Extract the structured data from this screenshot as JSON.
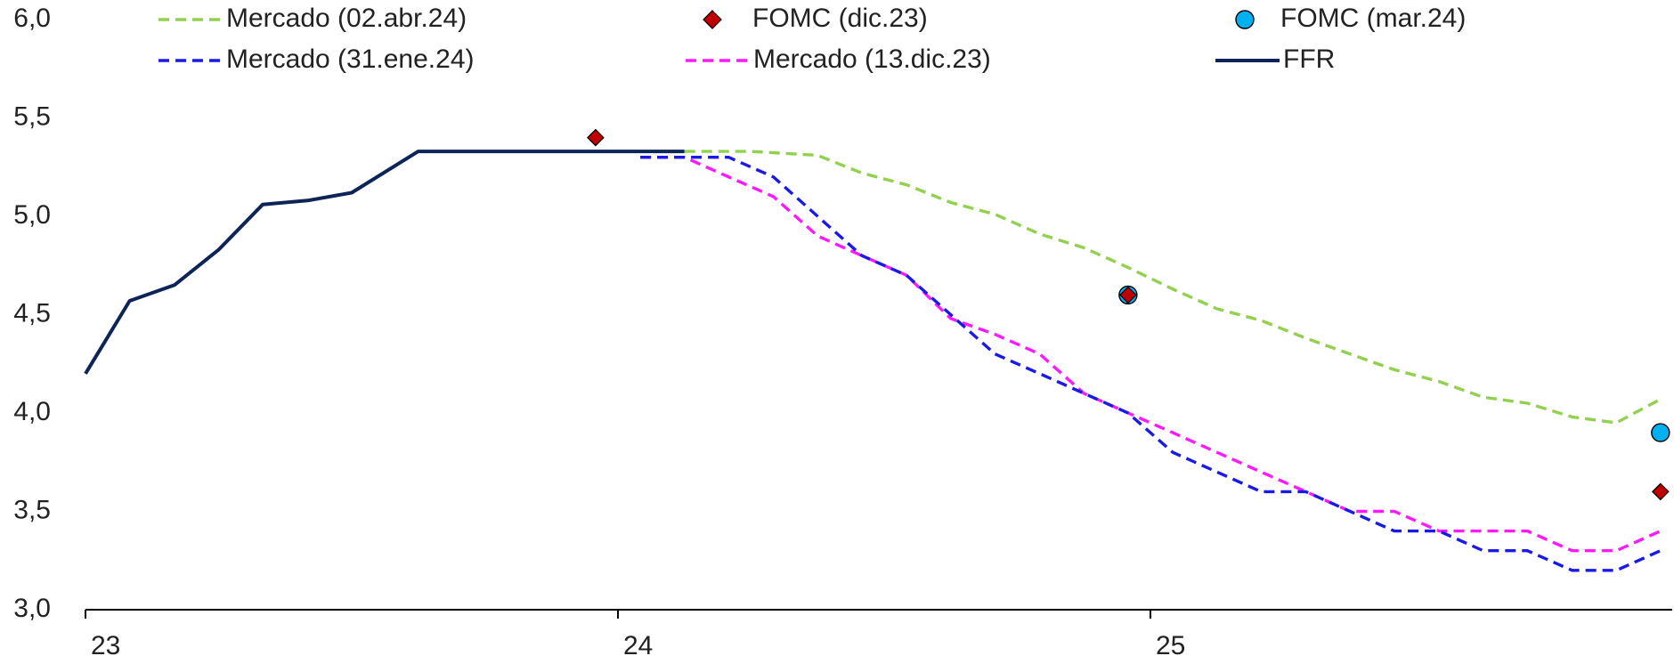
{
  "chart_data": {
    "type": "line",
    "title": "",
    "xlabel": "",
    "ylabel": "",
    "ylim": [
      3.0,
      6.0
    ],
    "xlim": [
      2023.0,
      2025.98
    ],
    "y_ticks": [
      "6,0",
      "5,5",
      "5,0",
      "4,5",
      "4,0",
      "3,5",
      "3,0"
    ],
    "y_tick_values": [
      6.0,
      5.5,
      5.0,
      4.5,
      4.0,
      3.5,
      3.0
    ],
    "x_ticks": [
      "23",
      "24",
      "25"
    ],
    "x_tick_values": [
      2023.0,
      2024.0,
      2025.0
    ],
    "grid": false,
    "legend_position": "top",
    "legend": [
      {
        "label": "Mercado (02.abr.24)",
        "series": "mercado_abr"
      },
      {
        "label": "FOMC (dic.23)",
        "series": "fomc_dic"
      },
      {
        "label": "FOMC (mar.24)",
        "series": "fomc_mar"
      },
      {
        "label": "Mercado (31.ene.24)",
        "series": "mercado_ene"
      },
      {
        "label": "Mercado (13.dic.23)",
        "series": "mercado_dic"
      },
      {
        "label": "FFR",
        "series": "ffr"
      }
    ],
    "series": [
      {
        "id": "ffr",
        "name": "FFR",
        "kind": "line",
        "color": "#0d2456",
        "dash": "solid",
        "x": [
          2023.0,
          2023.083,
          2023.167,
          2023.25,
          2023.333,
          2023.417,
          2023.5,
          2023.625,
          2023.75,
          2023.875,
          2024.0,
          2024.125
        ],
        "y": [
          4.2,
          4.57,
          4.65,
          4.83,
          5.06,
          5.08,
          5.12,
          5.33,
          5.33,
          5.33,
          5.33,
          5.33
        ]
      },
      {
        "id": "mercado_abr",
        "name": "Mercado (02.abr.24)",
        "kind": "line",
        "color": "#92d050",
        "dash": "dashed",
        "x": [
          2024.125,
          2024.25,
          2024.375,
          2024.458,
          2024.542,
          2024.625,
          2024.708,
          2024.792,
          2024.875,
          2024.958,
          2025.042,
          2025.125,
          2025.208,
          2025.292,
          2025.375,
          2025.458,
          2025.542,
          2025.625,
          2025.708,
          2025.792,
          2025.875,
          2025.958
        ],
        "y": [
          5.33,
          5.33,
          5.31,
          5.22,
          5.16,
          5.07,
          5.01,
          4.91,
          4.84,
          4.74,
          4.63,
          4.53,
          4.47,
          4.38,
          4.3,
          4.22,
          4.16,
          4.08,
          4.05,
          3.98,
          3.95,
          4.07
        ]
      },
      {
        "id": "mercado_ene",
        "name": "Mercado (31.ene.24)",
        "kind": "line",
        "color": "#1a1ae6",
        "dash": "dashed",
        "x": [
          2024.042,
          2024.125,
          2024.208,
          2024.292,
          2024.375,
          2024.458,
          2024.542,
          2024.625,
          2024.708,
          2024.792,
          2024.875,
          2024.958,
          2025.042,
          2025.125,
          2025.208,
          2025.292,
          2025.375,
          2025.458,
          2025.542,
          2025.625,
          2025.708,
          2025.792,
          2025.875,
          2025.958
        ],
        "y": [
          5.3,
          5.3,
          5.3,
          5.2,
          5.0,
          4.8,
          4.7,
          4.5,
          4.3,
          4.2,
          4.1,
          4.0,
          3.8,
          3.7,
          3.6,
          3.6,
          3.5,
          3.4,
          3.4,
          3.3,
          3.3,
          3.2,
          3.2,
          3.3
        ]
      },
      {
        "id": "mercado_dic",
        "name": "Mercado (13.dic.23)",
        "kind": "line",
        "color": "#ff19ff",
        "dash": "dashed",
        "x": [
          2024.042,
          2024.125,
          2024.208,
          2024.292,
          2024.375,
          2024.458,
          2024.542,
          2024.625,
          2024.708,
          2024.792,
          2024.875,
          2024.958,
          2025.042,
          2025.125,
          2025.208,
          2025.292,
          2025.375,
          2025.458,
          2025.542,
          2025.625,
          2025.708,
          2025.792,
          2025.875,
          2025.958
        ],
        "y": [
          5.3,
          5.3,
          5.2,
          5.1,
          4.9,
          4.8,
          4.7,
          4.48,
          4.4,
          4.3,
          4.1,
          4.0,
          3.9,
          3.8,
          3.7,
          3.6,
          3.5,
          3.5,
          3.4,
          3.4,
          3.4,
          3.3,
          3.3,
          3.4
        ]
      },
      {
        "id": "fomc_dic",
        "name": "FOMC (dic.23)",
        "kind": "marker",
        "marker": "diamond",
        "color": "#c00000",
        "x": [
          2023.958,
          2024.958,
          2025.958
        ],
        "y": [
          5.4,
          4.6,
          3.6
        ]
      },
      {
        "id": "fomc_mar",
        "name": "FOMC (mar.24)",
        "kind": "marker",
        "marker": "circle",
        "color": "#00b0f0",
        "x": [
          2024.958,
          2025.958
        ],
        "y": [
          4.6,
          3.9
        ]
      }
    ]
  }
}
